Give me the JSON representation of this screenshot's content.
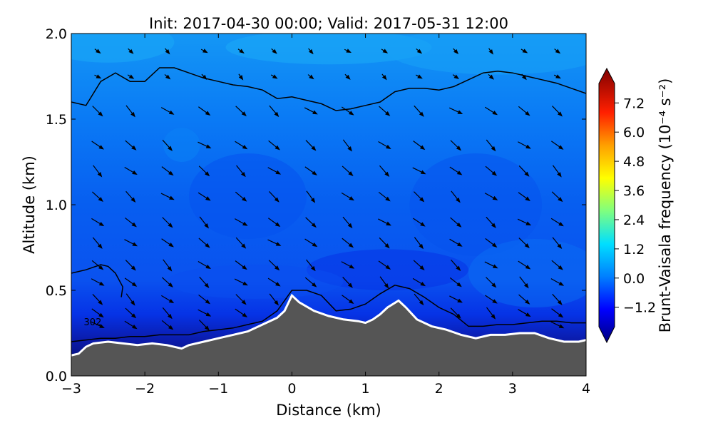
{
  "chart_data": {
    "type": "heatmap",
    "title": "Init: 2017-04-30 00:00; Valid: 2017-05-31 12:00",
    "xlabel": "Distance (km)",
    "ylabel": "Altitude (km)",
    "xlim": [
      -3,
      4
    ],
    "ylim": [
      0,
      2
    ],
    "x_ticks": [
      -3,
      -2,
      -1,
      0,
      1,
      2,
      3,
      4
    ],
    "x_tick_labels": [
      "−3",
      "−2",
      "−1",
      "0",
      "1",
      "2",
      "3",
      "4"
    ],
    "y_ticks": [
      0.0,
      0.5,
      1.0,
      1.5,
      2.0
    ],
    "y_tick_labels": [
      "0.0",
      "0.5",
      "1.0",
      "1.5",
      "2.0"
    ],
    "colorbar": {
      "label": "Brunt-Vaisala frequency (10⁻⁴ s⁻²)",
      "range": [
        -2.0,
        8.0
      ],
      "ticks": [
        -1.2,
        0.0,
        1.2,
        2.4,
        3.6,
        4.8,
        6.0,
        7.2
      ],
      "tick_labels": [
        "−1.2",
        "0.0",
        "1.2",
        "2.4",
        "3.6",
        "4.8",
        "6.0",
        "7.2"
      ],
      "colors": [
        "#00007f",
        "#0000ff",
        "#007fff",
        "#00ffff",
        "#7fff7f",
        "#ffff00",
        "#ff7f00",
        "#ff0000",
        "#7f0000"
      ]
    },
    "terrain": {
      "x": [
        -3.0,
        -2.9,
        -2.8,
        -2.7,
        -2.5,
        -2.3,
        -2.1,
        -1.9,
        -1.7,
        -1.5,
        -1.4,
        -1.2,
        -1.0,
        -0.8,
        -0.6,
        -0.4,
        -0.2,
        -0.1,
        0.0,
        0.1,
        0.3,
        0.5,
        0.7,
        0.9,
        1.0,
        1.1,
        1.2,
        1.3,
        1.45,
        1.55,
        1.7,
        1.9,
        2.1,
        2.3,
        2.5,
        2.7,
        2.9,
        3.1,
        3.3,
        3.5,
        3.7,
        3.9,
        4.0
      ],
      "y": [
        0.12,
        0.13,
        0.17,
        0.19,
        0.2,
        0.19,
        0.18,
        0.19,
        0.18,
        0.16,
        0.18,
        0.2,
        0.22,
        0.24,
        0.26,
        0.3,
        0.34,
        0.38,
        0.47,
        0.43,
        0.38,
        0.35,
        0.33,
        0.32,
        0.31,
        0.33,
        0.36,
        0.4,
        0.44,
        0.4,
        0.33,
        0.29,
        0.27,
        0.24,
        0.22,
        0.24,
        0.24,
        0.25,
        0.25,
        0.22,
        0.2,
        0.2,
        0.21
      ],
      "color": "#555555"
    },
    "isentropes": [
      {
        "x": [
          -3.0,
          -2.8,
          -2.6,
          -2.4,
          -2.2,
          -2.0,
          -1.8,
          -1.6,
          -1.4,
          -1.2,
          -1.0,
          -0.8,
          -0.6,
          -0.4,
          -0.2,
          0.0,
          0.2,
          0.4,
          0.6,
          0.8,
          1.0,
          1.2,
          1.4,
          1.6,
          1.8,
          2.0,
          2.2,
          2.4,
          2.6,
          2.8,
          3.0,
          3.2,
          3.4,
          3.6,
          3.8,
          4.0
        ],
        "y": [
          1.6,
          1.58,
          1.72,
          1.77,
          1.72,
          1.72,
          1.8,
          1.8,
          1.77,
          1.74,
          1.72,
          1.7,
          1.69,
          1.67,
          1.62,
          1.63,
          1.61,
          1.59,
          1.55,
          1.56,
          1.58,
          1.6,
          1.66,
          1.68,
          1.68,
          1.67,
          1.69,
          1.73,
          1.77,
          1.78,
          1.77,
          1.75,
          1.73,
          1.71,
          1.68,
          1.65
        ]
      },
      {
        "x": [
          -3.0,
          -2.8,
          -2.6,
          -2.5,
          -2.4,
          -2.3,
          -2.32
        ],
        "y": [
          0.6,
          0.62,
          0.65,
          0.64,
          0.6,
          0.52,
          0.46
        ]
      },
      {
        "x": [
          -3.0,
          -2.8,
          -2.6,
          -2.4,
          -2.2,
          -2.0,
          -1.8,
          -1.6,
          -1.4,
          -1.2,
          -1.0,
          -0.8,
          -0.6,
          -0.4,
          -0.2,
          0.0,
          0.2,
          0.4,
          0.6,
          0.8,
          1.0,
          1.2,
          1.4,
          1.6,
          1.8,
          2.0,
          2.2,
          2.4,
          2.6,
          2.8,
          3.0,
          3.2,
          3.4,
          3.6,
          3.8,
          4.0
        ],
        "y": [
          0.2,
          0.21,
          0.22,
          0.22,
          0.23,
          0.23,
          0.24,
          0.24,
          0.24,
          0.26,
          0.27,
          0.28,
          0.3,
          0.32,
          0.38,
          0.5,
          0.5,
          0.47,
          0.38,
          0.39,
          0.42,
          0.48,
          0.53,
          0.51,
          0.46,
          0.4,
          0.36,
          0.29,
          0.29,
          0.3,
          0.3,
          0.31,
          0.32,
          0.32,
          0.31,
          0.31
        ]
      }
    ],
    "contour_label": {
      "text": "302",
      "x": -2.83,
      "y": 0.295
    },
    "wind_vectors": {
      "columns_x": [
        -2.65,
        -2.2,
        -1.7,
        -1.2,
        -0.7,
        -0.25,
        0.25,
        0.75,
        1.25,
        1.72,
        2.22,
        2.7,
        3.15,
        3.6
      ],
      "rows_y": [
        0.3,
        0.37,
        0.45,
        0.55,
        0.65,
        0.78,
        0.9,
        1.05,
        1.2,
        1.35,
        1.55,
        1.75,
        1.9
      ]
    }
  }
}
